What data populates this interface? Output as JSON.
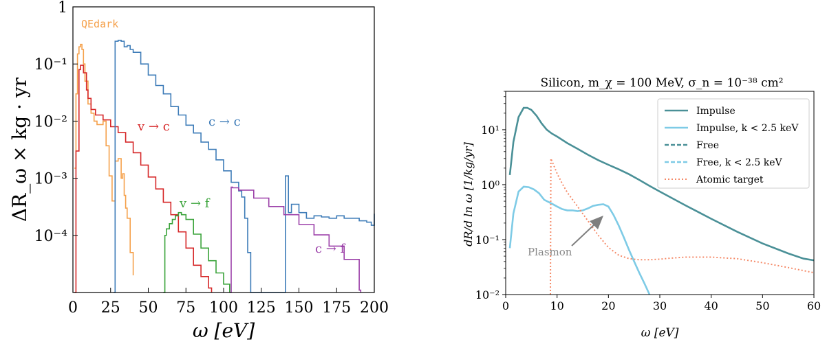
{
  "chart_data": [
    {
      "type": "line",
      "xlabel": "ω [eV]",
      "ylabel": "ΔR_ω × kg · yr",
      "xlim": [
        0,
        200
      ],
      "ylim": [
        1e-05,
        1
      ],
      "yscale": "log",
      "step": true,
      "x_ticks": [
        "0",
        "25",
        "50",
        "75",
        "100",
        "125",
        "150",
        "175",
        "200"
      ],
      "y_ticks": [
        "1",
        "10⁻¹",
        "10⁻²",
        "10⁻³",
        "10⁻⁴"
      ],
      "annotations": [
        "QEdark",
        "v → c",
        "c → c",
        "v → f",
        "c → f"
      ],
      "colors": {
        "QEdark": "#f5a04a",
        "v_c": "#d62728",
        "c_c": "#3e7cb8",
        "v_f": "#3aa33a",
        "c_f": "#9b3fa8"
      },
      "series": [
        {
          "name": "QEdark",
          "x": [
            1,
            2,
            3,
            4,
            5,
            6,
            7,
            8,
            10,
            12,
            14,
            16,
            18,
            20,
            22,
            24,
            26,
            28,
            30,
            32,
            33,
            34,
            35,
            36,
            38,
            40
          ],
          "y": [
            0.0015,
            0.03,
            0.15,
            0.2,
            0.22,
            0.18,
            0.1,
            0.05,
            0.02,
            0.0138,
            0.01,
            0.0087,
            0.0087,
            0.01,
            0.0037,
            0.0011,
            0.0004,
            0.002,
            0.0022,
            0.001,
            0.0012,
            0.0005,
            0.0003,
            0.0002,
            5e-05,
            2e-05
          ]
        },
        {
          "name": "v → c",
          "x": [
            1,
            2,
            4,
            5,
            7,
            9,
            10,
            12,
            15,
            20,
            25,
            30,
            35,
            40,
            45,
            50,
            55,
            60,
            65,
            70,
            75,
            80,
            85,
            90,
            92
          ],
          "y": [
            1e-05,
            0.003,
            0.08,
            0.095,
            0.07,
            0.035,
            0.025,
            0.016,
            0.0128,
            0.0105,
            0.008,
            0.0063,
            0.0043,
            0.0028,
            0.0017,
            0.00105,
            0.00065,
            0.00038,
            0.00023,
            0.000115,
            6e-05,
            3e-05,
            1.9e-05,
            1.2e-05,
            1e-05
          ]
        },
        {
          "name": "c → c",
          "x": [
            27,
            28,
            30,
            32,
            34,
            36,
            38,
            40,
            45,
            50,
            55,
            60,
            65,
            70,
            75,
            80,
            85,
            90,
            95,
            100,
            105,
            110,
            112,
            114,
            116,
            118,
            125,
            140,
            141,
            143,
            145,
            150,
            155,
            160,
            165,
            170,
            175,
            180,
            185,
            190,
            195,
            198,
            200
          ],
          "y": [
            1e-05,
            0.25,
            0.26,
            0.25,
            0.2,
            0.21,
            0.18,
            0.16,
            0.1,
            0.064,
            0.042,
            0.03,
            0.018,
            0.0128,
            0.0085,
            0.0062,
            0.0043,
            0.0032,
            0.0021,
            0.00135,
            0.00085,
            0.0006,
            0.00047,
            0.0002,
            5e-05,
            1e-05,
            1e-05,
            1e-05,
            0.0011,
            0.00025,
            0.00035,
            0.00025,
            0.0002,
            0.00022,
            0.00021,
            0.0002,
            0.00022,
            0.0002,
            0.0002,
            0.00018,
            0.00017,
            0.00015,
            0.00024
          ]
        },
        {
          "name": "v → f",
          "x": [
            60,
            61,
            62,
            64,
            66,
            68,
            70,
            72,
            75,
            80,
            85,
            90,
            95,
            100,
            104
          ],
          "y": [
            1e-05,
            0.0001,
            0.00013,
            0.00016,
            0.00019,
            0.00022,
            0.00025,
            0.00023,
            0.00019,
            0.000105,
            6e-05,
            3.6e-05,
            2.2e-05,
            1.4e-05,
            1e-05
          ]
        },
        {
          "name": "c → f",
          "x": [
            104,
            105,
            106,
            110,
            120,
            130,
            140,
            150,
            160,
            170,
            180,
            190,
            191
          ],
          "y": [
            1e-05,
            0.0007,
            0.00068,
            0.00062,
            0.00045,
            0.00032,
            0.00023,
            0.000155,
            0.000102,
            6.5e-05,
            3.8e-05,
            1.1e-05,
            1e-05
          ]
        }
      ]
    },
    {
      "type": "line",
      "title": "Silicon, m_χ = 100 MeV, σ_n = 10⁻³⁸ cm²",
      "xlabel": "ω [eV]",
      "ylabel": "dR/d ln ω [1/kg/yr]",
      "xlim": [
        0,
        60
      ],
      "ylim": [
        0.01,
        50
      ],
      "yscale": "log",
      "x_ticks": [
        "0",
        "10",
        "20",
        "30",
        "40",
        "50",
        "60"
      ],
      "y_ticks": [
        "10¹",
        "10⁰",
        "10⁻¹",
        "10⁻²"
      ],
      "legend_placement": "top-right",
      "annotations": [
        "Plasmon"
      ],
      "series": [
        {
          "name": "Impulse",
          "color": "#4a9097",
          "style": "solid",
          "x": [
            0.8,
            1.5,
            2.5,
            3.5,
            4.2,
            5,
            6,
            7,
            8,
            9,
            10,
            12,
            14,
            16,
            18,
            20,
            22,
            24,
            26,
            28,
            30,
            35,
            40,
            45,
            50,
            55,
            58,
            60
          ],
          "y": [
            1.5,
            6,
            17,
            25,
            25,
            23,
            18,
            13,
            10,
            8.5,
            7.5,
            5.7,
            4.5,
            3.5,
            2.8,
            2.3,
            1.9,
            1.55,
            1.22,
            0.95,
            0.75,
            0.42,
            0.24,
            0.14,
            0.085,
            0.056,
            0.045,
            0.042
          ]
        },
        {
          "name": "Impulse, k < 2.5 keV",
          "color": "#7ecbe6",
          "style": "solid",
          "x": [
            0.8,
            1.5,
            2.5,
            3.5,
            4.5,
            5.5,
            6.5,
            7.5,
            9,
            10,
            11,
            12,
            13,
            14,
            15,
            16,
            17,
            18,
            19,
            20,
            21,
            22,
            23,
            24,
            25,
            26,
            27,
            28
          ],
          "y": [
            0.07,
            0.3,
            0.75,
            0.92,
            0.9,
            0.82,
            0.7,
            0.53,
            0.45,
            0.4,
            0.36,
            0.34,
            0.34,
            0.33,
            0.34,
            0.37,
            0.41,
            0.43,
            0.44,
            0.4,
            0.28,
            0.18,
            0.11,
            0.065,
            0.04,
            0.025,
            0.016,
            0.01
          ]
        },
        {
          "name": "Free",
          "color": "#4a9097",
          "style": "dashed",
          "x": [],
          "y": []
        },
        {
          "name": "Free, k < 2.5 keV",
          "color": "#7ecbe6",
          "style": "dashed",
          "x": [],
          "y": []
        },
        {
          "name": "Atomic target",
          "color": "#f58a68",
          "style": "dotted",
          "x": [
            8.7,
            8.8,
            10,
            11,
            12,
            14,
            16,
            18,
            20,
            22,
            24,
            26,
            28,
            30,
            32,
            35,
            40,
            45,
            50,
            55,
            60
          ],
          "y": [
            0.01,
            3,
            1.6,
            1.05,
            0.72,
            0.4,
            0.22,
            0.12,
            0.072,
            0.052,
            0.045,
            0.043,
            0.043,
            0.044,
            0.046,
            0.048,
            0.048,
            0.045,
            0.038,
            0.031,
            0.025
          ]
        }
      ]
    }
  ]
}
